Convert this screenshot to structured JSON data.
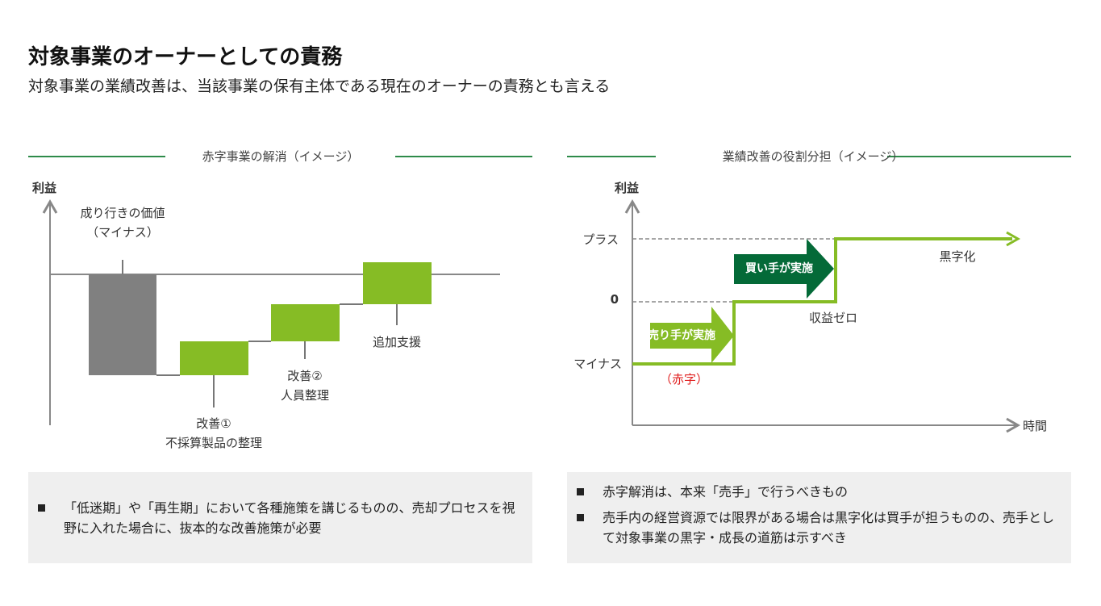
{
  "header": {
    "title": "対象事業のオーナーとしての責務",
    "subtitle": "対象事業の業績改善は、当該事業の保有主体である現在のオーナーの責務とも言える"
  },
  "left": {
    "section_title": "赤字事業の解消（イメージ）",
    "y_axis_label": "利益",
    "labels": {
      "base_line1": "成り行きの価値",
      "base_line2": "（マイナス）",
      "step1_line1": "改善①",
      "step1_line2": "不採算製品の整理",
      "step2_line1": "改善②",
      "step2_line2": "人員整理",
      "step3": "追加支援"
    },
    "colors": {
      "base": "#808080",
      "improvement": "#86bc25"
    },
    "note": "「低迷期」や「再生期」において各種施策を講じるものの、売却プロセスを視野に入れた場合に、抜本的な改善施策が必要"
  },
  "right": {
    "section_title": "業績改善の役割分担（イメージ）",
    "y_axis_label": "利益",
    "x_axis_label": "時間",
    "y_levels": [
      "プラス",
      "0",
      "マイナス"
    ],
    "labels": {
      "seller_arrow": "売り手が実施",
      "buyer_arrow": "買い手が実施",
      "deficit": "（赤字）",
      "zero_profit": "収益ゼロ",
      "profitable": "黒字化"
    },
    "colors": {
      "line": "#86bc25",
      "seller": "#86bc25",
      "buyer": "#046a38",
      "deficit_text": "#e02020"
    },
    "notes": [
      "赤字解消は、本来「売手」で行うべきもの",
      "売手内の経営資源では限界がある場合は黒字化は買手が担うものの、売手として対象事業の黒字・成長の道筋は示すべき"
    ]
  }
}
